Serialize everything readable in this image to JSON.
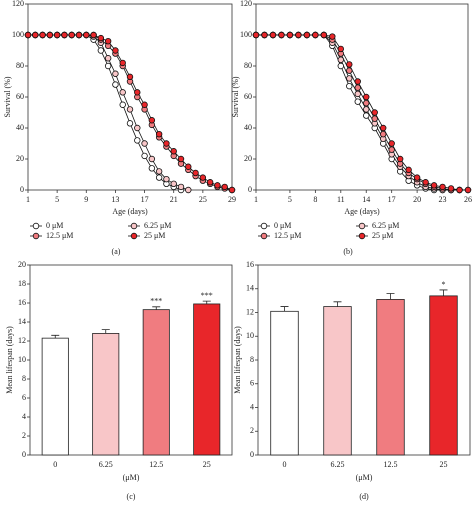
{
  "chart_data": [
    {
      "type": "line",
      "label": "(a)",
      "x_label": "Age (days)",
      "y_label": "Survival (%)",
      "x": [
        1,
        2,
        3,
        4,
        5,
        6,
        7,
        8,
        9,
        10,
        11,
        12,
        13,
        14,
        15,
        16,
        17,
        18,
        19,
        20,
        21,
        22,
        23,
        24,
        25,
        26,
        27,
        28,
        29
      ],
      "xlim": [
        1,
        29
      ],
      "xticks": [
        1,
        5,
        9,
        13,
        17,
        21,
        25,
        29
      ],
      "ylim": [
        0,
        120
      ],
      "yticks": [
        0,
        20,
        40,
        60,
        80,
        100,
        120
      ],
      "series": [
        {
          "name": "0 μM",
          "color": "#ffffff",
          "values": [
            100,
            100,
            100,
            100,
            100,
            100,
            100,
            100,
            100,
            97,
            90,
            80,
            68,
            55,
            43,
            32,
            22,
            14,
            8,
            4,
            2,
            0,
            null,
            null,
            null,
            null,
            null,
            null,
            null
          ]
        },
        {
          "name": "6.25 μM",
          "color": "#f8c6c8",
          "values": [
            100,
            100,
            100,
            100,
            100,
            100,
            100,
            100,
            100,
            99,
            95,
            85,
            75,
            63,
            52,
            40,
            30,
            20,
            12,
            7,
            4,
            2,
            0,
            null,
            null,
            null,
            null,
            null,
            null
          ]
        },
        {
          "name": "12.5 μM",
          "color": "#f07c80",
          "values": [
            100,
            100,
            100,
            100,
            100,
            100,
            100,
            100,
            100,
            100,
            97,
            93,
            88,
            80,
            70,
            60,
            52,
            42,
            34,
            28,
            22,
            17,
            13,
            9,
            6,
            4,
            2,
            1,
            0
          ]
        },
        {
          "name": "25 μM",
          "color": "#e8262a",
          "values": [
            100,
            100,
            100,
            100,
            100,
            100,
            100,
            100,
            100,
            100,
            98,
            96,
            90,
            82,
            73,
            63,
            55,
            45,
            36,
            30,
            25,
            20,
            15,
            11,
            8,
            5,
            3,
            2,
            0
          ]
        }
      ]
    },
    {
      "type": "line",
      "label": "(b)",
      "x_label": "Age (days)",
      "y_label": "Survival (%)",
      "x": [
        1,
        2,
        3,
        4,
        5,
        6,
        7,
        8,
        9,
        10,
        11,
        12,
        13,
        14,
        15,
        16,
        17,
        18,
        19,
        20,
        21,
        22,
        23,
        24,
        25,
        26
      ],
      "xlim": [
        1,
        26
      ],
      "xticks": [
        1,
        5,
        8,
        11,
        14,
        17,
        20,
        23,
        26
      ],
      "ylim": [
        0,
        120
      ],
      "yticks": [
        0,
        20,
        40,
        60,
        80,
        100,
        120
      ],
      "series": [
        {
          "name": "0 μM",
          "color": "#ffffff",
          "values": [
            100,
            100,
            100,
            100,
            100,
            100,
            100,
            100,
            100,
            93,
            80,
            67,
            57,
            48,
            40,
            30,
            20,
            12,
            6,
            3,
            1,
            0,
            0,
            0,
            null,
            null
          ]
        },
        {
          "name": "6.25 μM",
          "color": "#f8c6c8",
          "values": [
            100,
            100,
            100,
            100,
            100,
            100,
            100,
            100,
            100,
            95,
            84,
            72,
            62,
            52,
            43,
            33,
            23,
            15,
            9,
            5,
            2,
            1,
            0,
            0,
            0,
            null
          ]
        },
        {
          "name": "12.5 μM",
          "color": "#f07c80",
          "values": [
            100,
            100,
            100,
            100,
            100,
            100,
            100,
            100,
            100,
            97,
            88,
            77,
            66,
            56,
            46,
            36,
            26,
            17,
            11,
            7,
            4,
            2,
            1,
            0,
            0,
            0
          ]
        },
        {
          "name": "25 μM",
          "color": "#e8262a",
          "values": [
            100,
            100,
            100,
            100,
            100,
            100,
            100,
            100,
            100,
            99,
            91,
            81,
            70,
            60,
            50,
            40,
            30,
            20,
            13,
            8,
            5,
            3,
            2,
            1,
            0,
            0
          ]
        }
      ]
    },
    {
      "type": "bar",
      "label": "(c)",
      "x_label": "(μM)",
      "y_label": "Mean lifespan (days)",
      "categories": [
        "0",
        "6.25",
        "12.5",
        "25"
      ],
      "values": [
        12.3,
        12.8,
        15.3,
        15.9
      ],
      "errors": [
        0.3,
        0.4,
        0.3,
        0.3
      ],
      "significance": [
        null,
        null,
        "***",
        "***"
      ],
      "colors": [
        "#ffffff",
        "#f8c6c8",
        "#f07c80",
        "#e8262a"
      ],
      "ylim": [
        0,
        20
      ],
      "yticks": [
        0,
        2,
        4,
        6,
        8,
        10,
        12,
        14,
        16,
        18,
        20
      ]
    },
    {
      "type": "bar",
      "label": "(d)",
      "x_label": "(μM)",
      "y_label": "Mean lifespan (days)",
      "categories": [
        "0",
        "6.25",
        "12.5",
        "25"
      ],
      "values": [
        12.1,
        12.5,
        13.1,
        13.4
      ],
      "errors": [
        0.4,
        0.4,
        0.5,
        0.5
      ],
      "significance": [
        null,
        null,
        null,
        "*"
      ],
      "colors": [
        "#ffffff",
        "#f8c6c8",
        "#f07c80",
        "#e8262a"
      ],
      "ylim": [
        0,
        16
      ],
      "yticks": [
        0,
        2,
        4,
        6,
        8,
        10,
        12,
        14,
        16
      ]
    }
  ]
}
